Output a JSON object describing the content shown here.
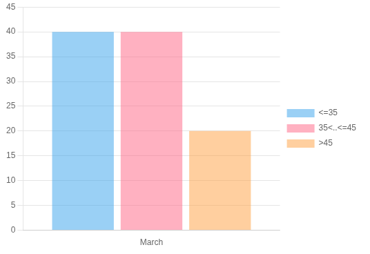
{
  "chart_data": {
    "type": "bar",
    "categories": [
      "March"
    ],
    "series": [
      {
        "name": "<=35",
        "values": [
          40
        ]
      },
      {
        "name": "35<..<=45",
        "values": [
          40
        ]
      },
      {
        "name": ">45",
        "values": [
          20
        ]
      }
    ],
    "ylim": [
      0,
      45
    ],
    "yticks": [
      0,
      5,
      10,
      15,
      20,
      25,
      30,
      35,
      40,
      45
    ],
    "grid": true,
    "legend": "right"
  }
}
